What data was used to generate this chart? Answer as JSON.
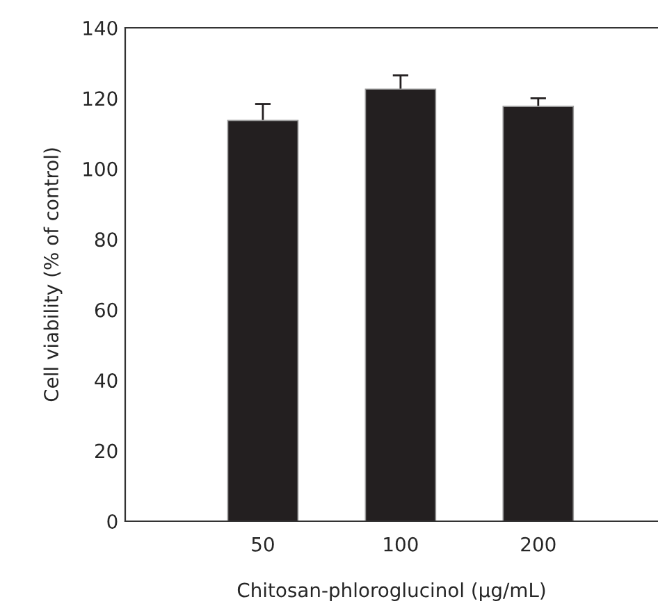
{
  "chart_data": {
    "type": "bar",
    "xlabel": "Chitosan-phloroglucinol (µg/mL)",
    "ylabel": "Cell viability (% of control)",
    "categories": [
      "50",
      "100",
      "200"
    ],
    "values": [
      113.7,
      122.6,
      117.7
    ],
    "errors": [
      4.7,
      3.9,
      2.3
    ],
    "color": "#231f20",
    "ylim": [
      0,
      140
    ],
    "yticks": [
      0,
      20,
      40,
      60,
      80,
      100,
      120,
      140
    ],
    "grid": false
  }
}
